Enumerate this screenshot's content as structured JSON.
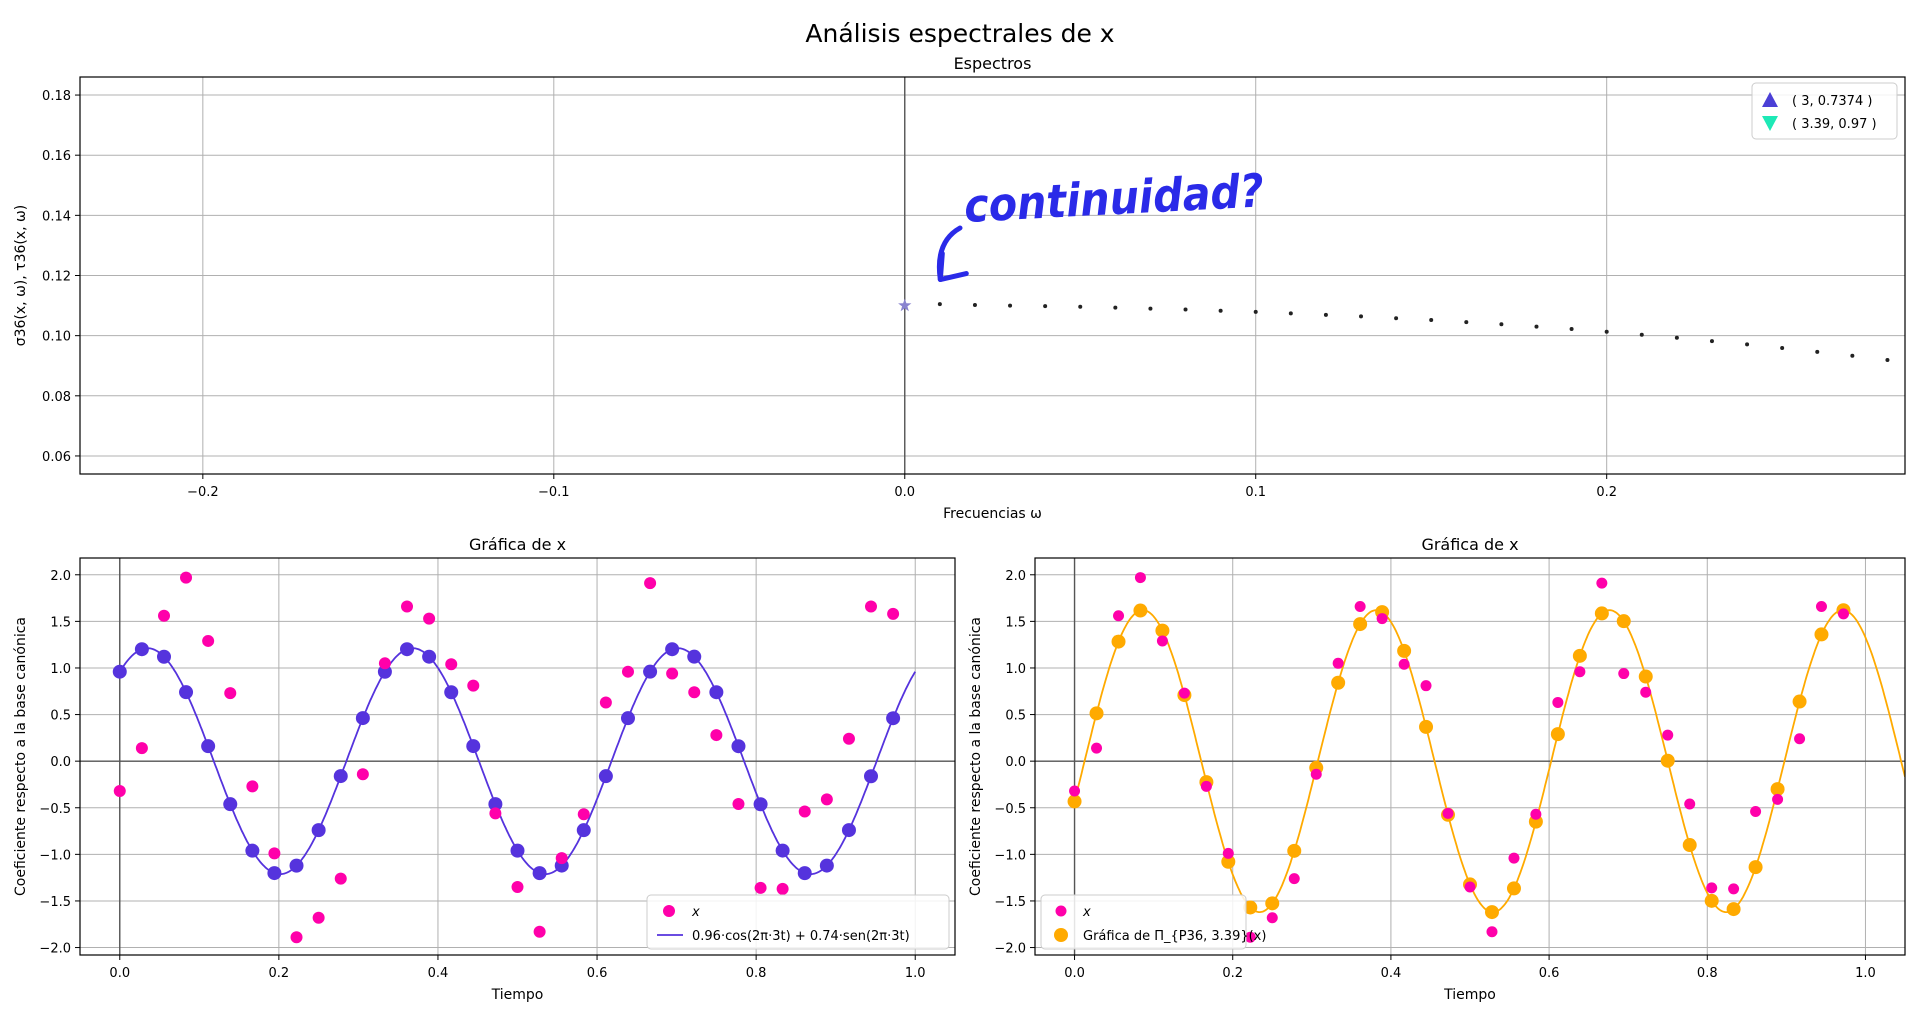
{
  "figure": {
    "suptitle": "Análisis espectrales de x"
  },
  "chart_data": [
    {
      "type": "scatter",
      "title": "Espectros",
      "xlabel": "Frecuencias ω",
      "ylabel": "σ36(x, ω), τ36(x, ω)",
      "xlim": [
        -0.235,
        0.285
      ],
      "ylim": [
        0.054,
        0.186
      ],
      "xticks": [
        -0.2,
        -0.1,
        0.0,
        0.1,
        0.2
      ],
      "xtick_labels": [
        "−0.2",
        "−0.1",
        "0.0",
        "0.1",
        "0.2"
      ],
      "yticks": [
        0.06,
        0.08,
        0.1,
        0.12,
        0.14,
        0.16,
        0.18
      ],
      "ytick_labels": [
        "0.06",
        "0.08",
        "0.10",
        "0.12",
        "0.14",
        "0.16",
        "0.18"
      ],
      "grid": true,
      "legend_position": "top-right",
      "legend": [
        {
          "label": "( 3, 0.7374 )",
          "marker": "triangle-up",
          "color": "#4b3fd6"
        },
        {
          "label": "( 3.39, 0.97 )",
          "marker": "triangle-down",
          "color": "#1de9b6"
        }
      ],
      "star_point": {
        "x": 0.0,
        "y": 0.11,
        "color": "#8a84d0"
      },
      "dots": {
        "x": [
          0.01,
          0.02,
          0.03,
          0.04,
          0.05,
          0.06,
          0.07,
          0.08,
          0.09,
          0.1,
          0.11,
          0.12,
          0.13,
          0.14,
          0.15,
          0.16,
          0.17,
          0.18,
          0.19,
          0.2,
          0.21,
          0.22,
          0.23,
          0.24,
          0.25,
          0.26,
          0.27,
          0.28
        ],
        "y": [
          0.1105,
          0.1102,
          0.11,
          0.1098,
          0.1096,
          0.1093,
          0.109,
          0.1087,
          0.1083,
          0.1079,
          0.1074,
          0.1069,
          0.1064,
          0.1058,
          0.1052,
          0.1045,
          0.1038,
          0.103,
          0.1022,
          0.1013,
          0.1003,
          0.0993,
          0.0982,
          0.0971,
          0.0959,
          0.0946,
          0.0933,
          0.0919
        ]
      },
      "annotation": {
        "text": "continuidad?",
        "color": "#2a2ae8",
        "points_to": {
          "x": 0.005,
          "y": 0.118
        }
      }
    },
    {
      "type": "scatter",
      "title": "Gráfica de x",
      "xlabel": "Tiempo",
      "ylabel": "Coeficiente respecto a la base canónica",
      "xlim": [
        -0.05,
        1.05
      ],
      "ylim": [
        -2.08,
        2.18
      ],
      "xticks": [
        0.0,
        0.2,
        0.4,
        0.6,
        0.8,
        1.0
      ],
      "xtick_labels": [
        "0.0",
        "0.2",
        "0.4",
        "0.6",
        "0.8",
        "1.0"
      ],
      "yticks": [
        -2.0,
        -1.5,
        -1.0,
        -0.5,
        0.0,
        0.5,
        1.0,
        1.5,
        2.0
      ],
      "ytick_labels": [
        "−2.0",
        "−1.5",
        "−1.0",
        "−0.5",
        "0.0",
        "0.5",
        "1.0",
        "1.5",
        "2.0"
      ],
      "grid": true,
      "legend_position": "bottom-right",
      "series": [
        {
          "name": "x",
          "kind": "points",
          "color": "#ff00aa",
          "x": [
            0.0,
            0.0278,
            0.0556,
            0.0833,
            0.1111,
            0.1389,
            0.1667,
            0.1944,
            0.2222,
            0.25,
            0.2778,
            0.3056,
            0.3333,
            0.3611,
            0.3889,
            0.4167,
            0.4444,
            0.4722,
            0.5,
            0.5278,
            0.5556,
            0.5833,
            0.6111,
            0.6389,
            0.6667,
            0.6944,
            0.7222,
            0.75,
            0.7778,
            0.8056,
            0.8333,
            0.8611,
            0.8889,
            0.9167,
            0.9444,
            0.9722
          ],
          "y": [
            -0.32,
            0.14,
            1.56,
            1.97,
            1.29,
            0.73,
            -0.27,
            -0.99,
            -1.89,
            -1.68,
            -1.26,
            -0.14,
            1.05,
            1.66,
            1.53,
            1.04,
            0.81,
            -0.56,
            -1.35,
            -1.83,
            -1.04,
            -0.57,
            0.63,
            0.96,
            1.91,
            0.94,
            0.74,
            0.28,
            -0.46,
            -1.36,
            -1.37,
            -0.54,
            -0.41,
            0.24,
            1.66,
            1.58
          ]
        },
        {
          "name": "0.96·cos(2π·3t) + 0.74·sen(2π·3t)",
          "kind": "curve",
          "color": "#5533dd",
          "a": 0.96,
          "b": 0.74,
          "freq": 3,
          "tmax": 1.0
        }
      ]
    },
    {
      "type": "scatter",
      "title": "Gráfica de x",
      "xlabel": "Tiempo",
      "ylabel": "Coeficiente respecto a la base canónica",
      "xlim": [
        -0.05,
        1.05
      ],
      "ylim": [
        -2.08,
        2.18
      ],
      "xticks": [
        0.0,
        0.2,
        0.4,
        0.6,
        0.8,
        1.0
      ],
      "xtick_labels": [
        "0.0",
        "0.2",
        "0.4",
        "0.6",
        "0.8",
        "1.0"
      ],
      "yticks": [
        -2.0,
        -1.5,
        -1.0,
        -0.5,
        0.0,
        0.5,
        1.0,
        1.5,
        2.0
      ],
      "ytick_labels": [
        "−2.0",
        "−1.5",
        "−1.0",
        "−0.5",
        "0.0",
        "0.5",
        "1.0",
        "1.5",
        "2.0"
      ],
      "grid": true,
      "legend_position": "bottom-left",
      "series": [
        {
          "name": "x",
          "kind": "points",
          "color": "#ff00aa",
          "x": [
            0.0,
            0.0278,
            0.0556,
            0.0833,
            0.1111,
            0.1389,
            0.1667,
            0.1944,
            0.2222,
            0.25,
            0.2778,
            0.3056,
            0.3333,
            0.3611,
            0.3889,
            0.4167,
            0.4444,
            0.4722,
            0.5,
            0.5278,
            0.5556,
            0.5833,
            0.6111,
            0.6389,
            0.6667,
            0.6944,
            0.7222,
            0.75,
            0.7778,
            0.8056,
            0.8333,
            0.8611,
            0.8889,
            0.9167,
            0.9444,
            0.9722
          ],
          "y": [
            -0.32,
            0.14,
            1.56,
            1.97,
            1.29,
            0.73,
            -0.27,
            -0.99,
            -1.89,
            -1.68,
            -1.26,
            -0.14,
            1.05,
            1.66,
            1.53,
            1.04,
            0.81,
            -0.56,
            -1.35,
            -1.83,
            -1.04,
            -0.57,
            0.63,
            0.96,
            1.91,
            0.94,
            0.74,
            0.28,
            -0.46,
            -1.36,
            -1.37,
            -0.54,
            -0.41,
            0.24,
            1.66,
            1.58
          ]
        },
        {
          "name": "Gráfica de Π_{P36, 3.39}(x)",
          "kind": "curve_points",
          "color": "#ffaa00",
          "amp": 1.62,
          "freq": 3.39,
          "phase": -0.27
        }
      ]
    }
  ]
}
